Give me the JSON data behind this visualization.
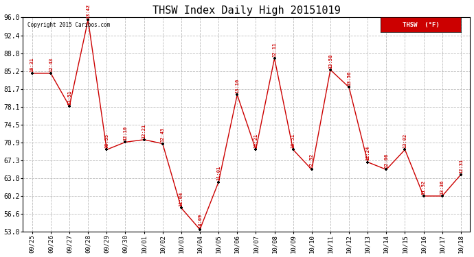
{
  "title": "THSW Index Daily High 20151019",
  "x_labels": [
    "09/25",
    "09/26",
    "09/27",
    "09/28",
    "09/29",
    "09/30",
    "10/01",
    "10/02",
    "10/03",
    "10/04",
    "10/05",
    "10/06",
    "10/07",
    "10/08",
    "10/09",
    "10/10",
    "10/11",
    "10/12",
    "10/13",
    "10/14",
    "10/15",
    "10/16",
    "10/17",
    "10/18"
  ],
  "y_values": [
    84.8,
    84.8,
    78.2,
    95.5,
    69.5,
    71.0,
    71.5,
    70.7,
    57.8,
    53.5,
    63.0,
    80.5,
    69.5,
    87.8,
    69.5,
    65.5,
    85.5,
    82.0,
    67.0,
    65.5,
    69.5,
    60.2,
    60.2,
    64.5
  ],
  "time_labels": [
    "10:31",
    "12:43",
    "13:51",
    "13:42",
    "00:55",
    "12:10",
    "12:21",
    "12:43",
    "11:04",
    "14:09",
    "11:01",
    "13:16",
    "12:21",
    "12:11",
    "10:51",
    "12:52",
    "13:58",
    "13:56",
    "12:24",
    "12:06",
    "13:02",
    "11:52",
    "13:36",
    "12:31"
  ],
  "ylim_min": 53.0,
  "ylim_max": 96.0,
  "yticks": [
    53.0,
    56.6,
    60.2,
    63.8,
    67.3,
    70.9,
    74.5,
    78.1,
    81.7,
    85.2,
    88.8,
    92.4,
    96.0
  ],
  "line_color": "#cc0000",
  "marker_color": "#000000",
  "label_color": "#cc0000",
  "background_color": "#ffffff",
  "grid_color": "#bbbbbb",
  "title_fontsize": 11,
  "copyright_text": "Copyright 2015 Caribos.com",
  "legend_label": "THSW  (°F)",
  "legend_bg": "#cc0000",
  "legend_text_color": "#ffffff"
}
